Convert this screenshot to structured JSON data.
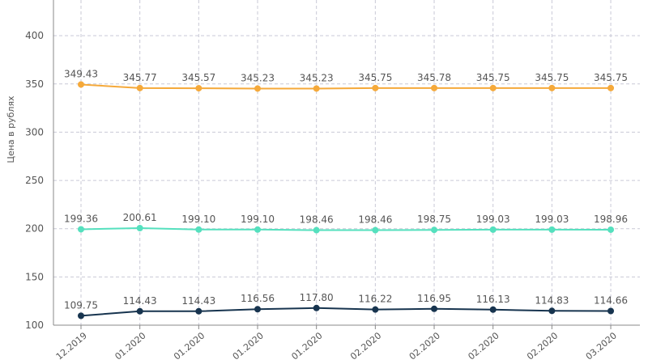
{
  "chart_data": {
    "type": "line",
    "y_label": "Цена в рублях",
    "categories": [
      "12.2019",
      "01.2020",
      "01.2020",
      "01.2020",
      "01.2020",
      "02.2020",
      "02.2020",
      "02.2020",
      "02.2020",
      "03.2020"
    ],
    "series": [
      {
        "color": "#f5a93a",
        "values": [
          349.43,
          345.77,
          345.57,
          345.23,
          345.23,
          345.75,
          345.78,
          345.75,
          345.75,
          345.75
        ],
        "value_labels": [
          "349.43",
          "345.77",
          "345.57",
          "345.23",
          "345.23",
          "345.75",
          "345.78",
          "345.75",
          "345.75",
          "345.75"
        ]
      },
      {
        "color": "#55e0be",
        "values": [
          199.36,
          200.61,
          199.1,
          199.1,
          198.46,
          198.46,
          198.75,
          199.03,
          199.03,
          198.96
        ],
        "value_labels": [
          "199.36",
          "200.61",
          "199.10",
          "199.10",
          "198.46",
          "198.46",
          "198.75",
          "199.03",
          "199.03",
          "198.96"
        ]
      },
      {
        "color": "#17344f",
        "values": [
          109.75,
          114.43,
          114.43,
          116.56,
          117.8,
          116.22,
          116.95,
          116.13,
          114.83,
          114.66
        ],
        "value_labels": [
          "109.75",
          "114.43",
          "114.43",
          "116.56",
          "117.80",
          "116.22",
          "116.95",
          "116.13",
          "114.83",
          "114.66"
        ]
      }
    ],
    "ylim": [
      100,
      437
    ],
    "yticks": [
      100,
      150,
      200,
      250,
      300,
      350,
      400
    ],
    "grid": true
  }
}
